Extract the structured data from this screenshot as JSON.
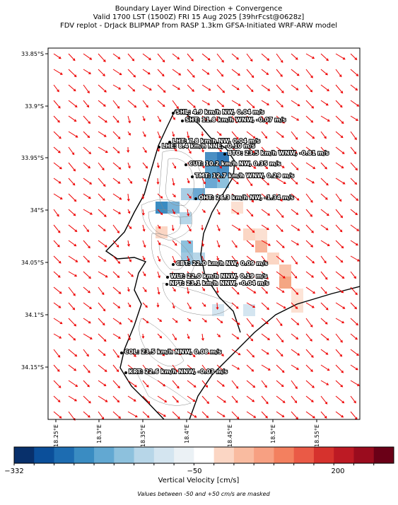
{
  "title": [
    "Boundary Layer Wind Direction + Convergence",
    "Valid 1700 LST (1500Z) FRI 15 Aug 2025 [39hrFcst@0628z]",
    "FDV replot - DrJack BLIPMAP from RASP 1.3km GFSA-Initiated WRF-ARW model"
  ],
  "lat_ticks": [
    "33.85°S",
    "33.9°S",
    "33.95°S",
    "34°S",
    "34.05°S",
    "34.1°S",
    "34.15°S"
  ],
  "lon_ticks": [
    "18.25°E",
    "18.3°E",
    "18.35°E",
    "18.4°E",
    "18.45°E",
    "18.5°E",
    "18.55°E"
  ],
  "stations": [
    "SHL: 4.9 km/h NW, 0.04 m/s",
    "SHT: 11.8 km/h WNW, -0.07 m/s",
    "LHT: 7.8 km/h NW, 0.04 m/s",
    "LHE: 8.4 km/h NNE, -0.10 m/s",
    "BTO: 23.5 km/h WNW, -0.81 m/s",
    "CUT: 10.2 km/h NW, 0.35 m/s",
    "TMT: 12.7 km/h WNW, 0.29 m/s",
    "OHT: 26.3 km/h NW, -1.34 m/s",
    "CBT: 22.0 km/h NW, 0.09 m/s",
    "WLT: 22.0 km/h NNW, 0.19 m/s",
    "NPT: 23.1 km/h NNW, -0.04 m/s",
    "COL: 23.5 km/h NNW, 0.08 m/s",
    "KRT: 22.6 km/h NNW, -0.03 m/s"
  ],
  "colorbar": {
    "ticks": [
      "−332",
      "−50",
      "200"
    ],
    "label": "Vertical Velocity [cm/s]",
    "note": "Values between -50 and +50 cm/s are masked"
  }
}
